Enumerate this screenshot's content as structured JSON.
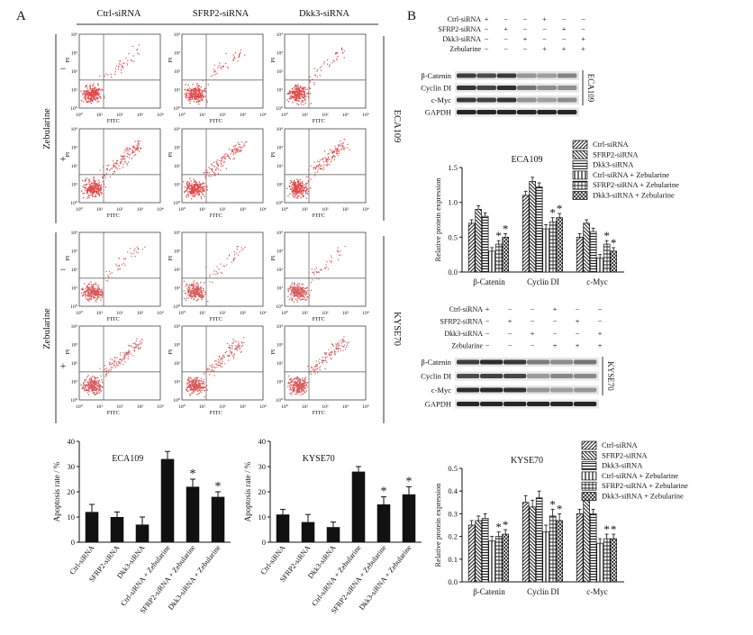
{
  "figure": {
    "panel_a": "A",
    "panel_b": "B",
    "flow": {
      "columns": [
        "Ctrl-siRNA",
        "SFRP2-siRNA",
        "Dkk3-siRNA"
      ],
      "treatment_label": "Zebularine",
      "minus": "−",
      "plus": "+",
      "cell_lines": [
        "ECA109",
        "KYSE70"
      ],
      "x_axis": "FITC",
      "y_axis": "PI",
      "ticks": [
        "10⁰",
        "10¹",
        "10²",
        "10³",
        "10⁴"
      ],
      "dot_colors": {
        "ECA109": "#e04848",
        "KYSE70": "#d85a5a"
      }
    },
    "western": {
      "row_labels": [
        "Ctrl-siRNA",
        "SFRP2-siRNA",
        "Dkk3-siRNA",
        "Zebularine"
      ],
      "signs": [
        [
          "+",
          "−",
          "−",
          "+",
          "−",
          "−"
        ],
        [
          "−",
          "+",
          "−",
          "−",
          "+",
          "−"
        ],
        [
          "−",
          "−",
          "+",
          "−",
          "−",
          "+"
        ],
        [
          "−",
          "−",
          "−",
          "+",
          "+",
          "+"
        ]
      ],
      "bands": [
        "β-Catenin",
        "Cyclin DI",
        "c-Myc",
        "GAPDH"
      ],
      "blots": [
        "ECA109",
        "KYSE70"
      ]
    },
    "legend": [
      "Ctrl-siRNA",
      "SFRP2-siRNA",
      "Dkk3-siRNA",
      "Ctrl-siRNA + Zebularine",
      "SFRP2-siRNA + Zebularine",
      "Dkk3-siRNA + Zebularine"
    ]
  },
  "chart_data": [
    {
      "id": "apoptosis-eca109",
      "type": "bar",
      "title": "ECA109",
      "ylabel": "Apoptosis rate / %",
      "ylim": [
        0,
        40
      ],
      "yticks": [
        "0",
        "10",
        "20",
        "30",
        "40"
      ],
      "categories": [
        "Ctrl-siRNA",
        "SFRP2-siRNA",
        "Dkk3-siRNA",
        "Ctrl-siRNA + Zebularine",
        "SFRP2-siRNA + Zebularine",
        "Dkk3-siRNA + Zebularine"
      ],
      "values": [
        12,
        10,
        7,
        33,
        22,
        18
      ],
      "errors": [
        3,
        2,
        3,
        3,
        3,
        2
      ],
      "significant": [
        false,
        false,
        false,
        false,
        true,
        true
      ],
      "star": "*"
    },
    {
      "id": "apoptosis-kyse70",
      "type": "bar",
      "title": "KYSE70",
      "ylabel": "Apoptosis rate / %",
      "ylim": [
        0,
        40
      ],
      "yticks": [
        "0",
        "10",
        "20",
        "30",
        "40"
      ],
      "categories": [
        "Ctrl-siRNA",
        "SFRP2-siRNA",
        "Dkk3-siRNA",
        "Ctrl-siRNA + Zebularine",
        "SFRP2-siRNA + Zebularine",
        "Dkk3-siRNA + Zebularine"
      ],
      "values": [
        11,
        8,
        6,
        28,
        15,
        19
      ],
      "errors": [
        2,
        3,
        2,
        2,
        3,
        3
      ],
      "significant": [
        false,
        false,
        false,
        false,
        true,
        true
      ],
      "star": "*"
    },
    {
      "id": "protein-eca109",
      "type": "bar",
      "title": "ECA109",
      "ylabel": "Relative protein expression",
      "ylim": [
        0,
        1.5
      ],
      "yticks": [
        "0.0",
        "0.5",
        "1.0",
        "1.5"
      ],
      "groups": [
        "β-Catenin",
        "Cyclin DI",
        "c-Myc"
      ],
      "series": [
        {
          "name": "Ctrl-siRNA",
          "values": [
            0.7,
            1.1,
            0.5
          ]
        },
        {
          "name": "SFRP2-siRNA",
          "values": [
            0.9,
            1.3,
            0.7
          ]
        },
        {
          "name": "Dkk3-siRNA",
          "values": [
            0.8,
            1.22,
            0.58
          ]
        },
        {
          "name": "Ctrl-siRNA + Zebularine",
          "values": [
            0.3,
            0.62,
            0.2
          ]
        },
        {
          "name": "SFRP2-siRNA + Zebularine",
          "values": [
            0.4,
            0.72,
            0.4
          ]
        },
        {
          "name": "Dkk3-siRNA + Zebularine",
          "values": [
            0.5,
            0.78,
            0.3
          ]
        }
      ],
      "errors": [
        0.05,
        0.06,
        0.05
      ],
      "stars": [
        [
          false,
          false,
          false,
          false,
          true,
          true
        ],
        [
          false,
          false,
          false,
          false,
          true,
          true
        ],
        [
          false,
          false,
          false,
          false,
          true,
          true
        ]
      ],
      "star": "*"
    },
    {
      "id": "protein-kyse70",
      "type": "bar",
      "title": "KYSE70",
      "ylabel": "Relative protein expression",
      "ylim": [
        0,
        0.5
      ],
      "yticks": [
        "0.0",
        "0.1",
        "0.2",
        "0.3",
        "0.4",
        "0.5"
      ],
      "groups": [
        "β-Catenin",
        "Cyclin DI",
        "c-Myc"
      ],
      "series": [
        {
          "name": "Ctrl-siRNA",
          "values": [
            0.25,
            0.35,
            0.3
          ]
        },
        {
          "name": "SFRP2-siRNA",
          "values": [
            0.27,
            0.33,
            0.37
          ]
        },
        {
          "name": "Dkk3-siRNA",
          "values": [
            0.28,
            0.37,
            0.3
          ]
        },
        {
          "name": "Ctrl-siRNA + Zebularine",
          "values": [
            0.18,
            0.22,
            0.17
          ]
        },
        {
          "name": "SFRP2-siRNA + Zebularine",
          "values": [
            0.2,
            0.29,
            0.19
          ]
        },
        {
          "name": "Dkk3-siRNA + Zebularine",
          "values": [
            0.21,
            0.27,
            0.19
          ]
        }
      ],
      "errors": [
        0.02,
        0.03,
        0.02
      ],
      "stars": [
        [
          false,
          false,
          false,
          false,
          true,
          true
        ],
        [
          false,
          false,
          false,
          false,
          true,
          true
        ],
        [
          false,
          false,
          false,
          false,
          true,
          true
        ]
      ],
      "star": "*"
    }
  ]
}
